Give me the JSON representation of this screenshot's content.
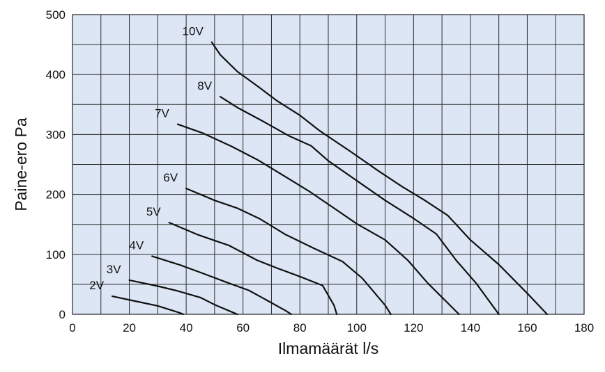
{
  "chart_data": {
    "type": "line",
    "title": "",
    "xlabel": "Ilmamäärät l/s",
    "ylabel": "Paine-ero Pa",
    "xlim": [
      0,
      180
    ],
    "ylim": [
      0,
      500
    ],
    "x_ticks": [
      0,
      20,
      40,
      60,
      80,
      100,
      120,
      140,
      160,
      180
    ],
    "y_ticks": [
      0,
      100,
      200,
      300,
      400,
      500
    ],
    "grid": true,
    "background": "#dde6f4",
    "line_color": "#111111",
    "series": [
      {
        "name": "2V",
        "points": [
          [
            14,
            30
          ],
          [
            22,
            22
          ],
          [
            30,
            14
          ],
          [
            34,
            8
          ],
          [
            38,
            2
          ],
          [
            39,
            0
          ]
        ]
      },
      {
        "name": "3V",
        "points": [
          [
            20,
            57
          ],
          [
            30,
            47
          ],
          [
            37,
            39
          ],
          [
            45,
            28
          ],
          [
            50,
            16
          ],
          [
            57,
            2
          ],
          [
            58,
            0
          ]
        ]
      },
      {
        "name": "4V",
        "points": [
          [
            28,
            97
          ],
          [
            38,
            82
          ],
          [
            46,
            68
          ],
          [
            55,
            52
          ],
          [
            62,
            40
          ],
          [
            67,
            27
          ],
          [
            75,
            6
          ],
          [
            77,
            0
          ]
        ]
      },
      {
        "name": "5V",
        "points": [
          [
            34,
            153
          ],
          [
            44,
            133
          ],
          [
            55,
            115
          ],
          [
            65,
            90
          ],
          [
            72,
            77
          ],
          [
            80,
            63
          ],
          [
            88,
            48
          ],
          [
            92,
            15
          ],
          [
            93,
            0
          ]
        ]
      },
      {
        "name": "6V",
        "points": [
          [
            40,
            210
          ],
          [
            50,
            190
          ],
          [
            58,
            177
          ],
          [
            66,
            159
          ],
          [
            75,
            133
          ],
          [
            85,
            110
          ],
          [
            95,
            88
          ],
          [
            102,
            60
          ],
          [
            110,
            15
          ],
          [
            112,
            0
          ]
        ]
      },
      {
        "name": "7V",
        "points": [
          [
            37,
            317
          ],
          [
            46,
            302
          ],
          [
            56,
            280
          ],
          [
            65,
            258
          ],
          [
            73,
            235
          ],
          [
            83,
            206
          ],
          [
            92,
            177
          ],
          [
            100,
            151
          ],
          [
            110,
            124
          ],
          [
            118,
            90
          ],
          [
            125,
            52
          ],
          [
            136,
            0
          ]
        ]
      },
      {
        "name": "8V",
        "points": [
          [
            52,
            363
          ],
          [
            58,
            345
          ],
          [
            67,
            322
          ],
          [
            76,
            298
          ],
          [
            84,
            281
          ],
          [
            90,
            256
          ],
          [
            100,
            223
          ],
          [
            110,
            190
          ],
          [
            120,
            160
          ],
          [
            128,
            134
          ],
          [
            135,
            90
          ],
          [
            142,
            52
          ],
          [
            150,
            0
          ]
        ]
      },
      {
        "name": "10V",
        "points": [
          [
            49,
            454
          ],
          [
            52,
            433
          ],
          [
            58,
            405
          ],
          [
            65,
            381
          ],
          [
            72,
            356
          ],
          [
            80,
            332
          ],
          [
            87,
            306
          ],
          [
            98,
            271
          ],
          [
            108,
            238
          ],
          [
            116,
            213
          ],
          [
            124,
            190
          ],
          [
            132,
            165
          ],
          [
            140,
            124
          ],
          [
            150,
            83
          ],
          [
            160,
            35
          ],
          [
            167,
            0
          ]
        ]
      }
    ]
  }
}
